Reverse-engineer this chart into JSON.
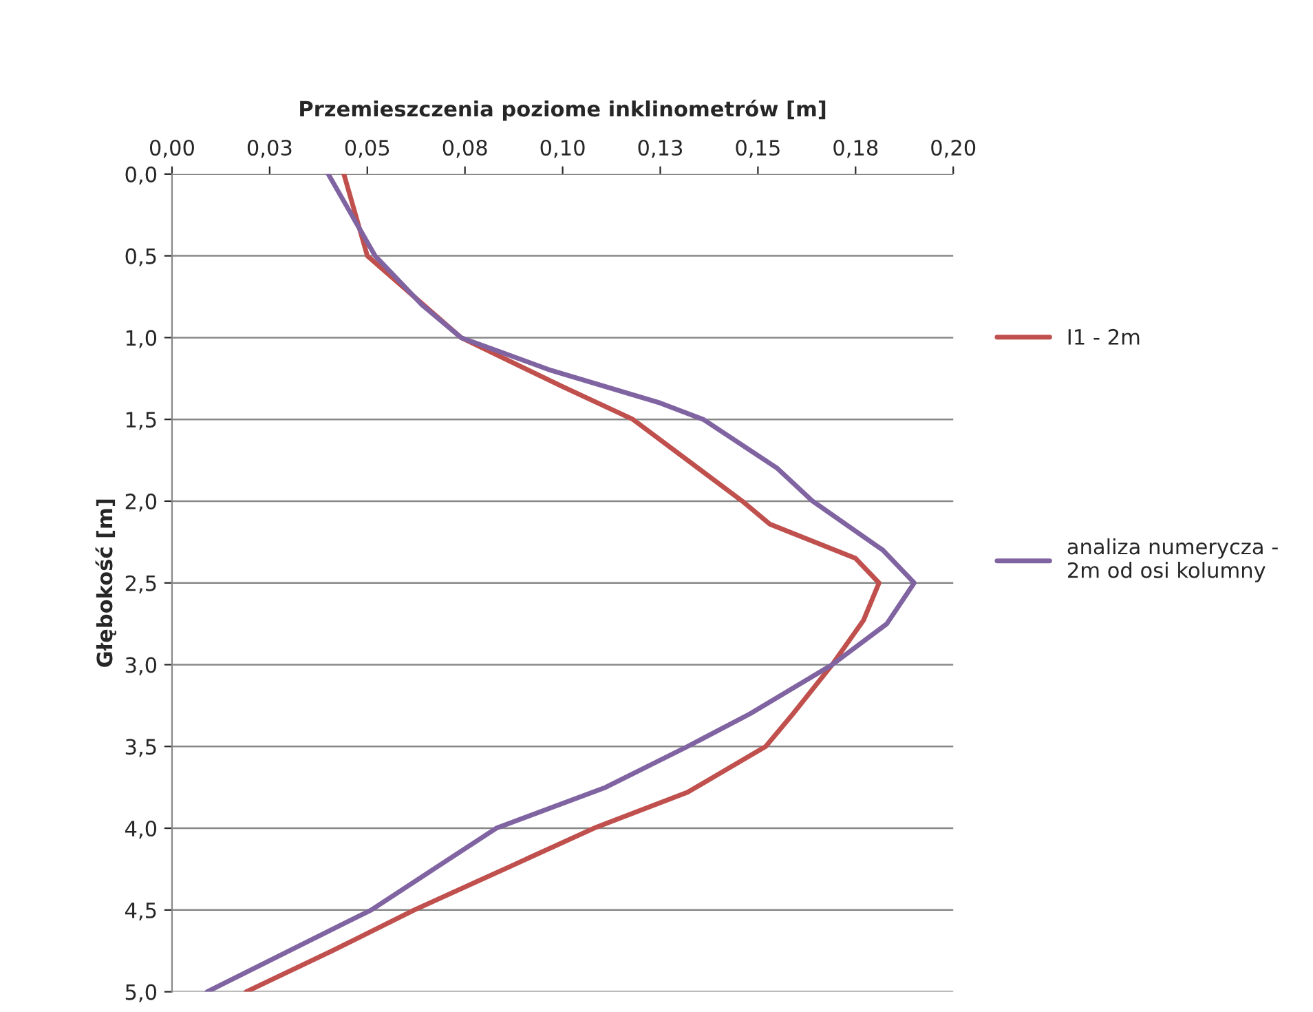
{
  "chart_data": {
    "type": "line",
    "xlabel": "Przemieszczenia poziome inklinometrów [m]",
    "ylabel": "Głębokość [m]",
    "xlim": [
      0,
      0.2
    ],
    "xticks": [
      {
        "value": 0,
        "label": "0,00"
      },
      {
        "value": 0.025,
        "label": "0,03"
      },
      {
        "value": 0.05,
        "label": "0,05"
      },
      {
        "value": 0.075,
        "label": "0,08"
      },
      {
        "value": 0.1,
        "label": "0,10"
      },
      {
        "value": 0.125,
        "label": "0,13"
      },
      {
        "value": 0.15,
        "label": "0,15"
      },
      {
        "value": 0.175,
        "label": "0,18"
      },
      {
        "value": 0.2,
        "label": "0,20"
      }
    ],
    "ylim": [
      5,
      0
    ],
    "yticks": [
      {
        "value": 0,
        "label": "0,0"
      },
      {
        "value": 0.5,
        "label": "0,5"
      },
      {
        "value": 1,
        "label": "1,0"
      },
      {
        "value": 1.5,
        "label": "1,5"
      },
      {
        "value": 2,
        "label": "2,0"
      },
      {
        "value": 2.5,
        "label": "2,5"
      },
      {
        "value": 3,
        "label": "3,0"
      },
      {
        "value": 3.5,
        "label": "3,5"
      },
      {
        "value": 4,
        "label": "4,0"
      },
      {
        "value": 4.5,
        "label": "4,5"
      },
      {
        "value": 5,
        "label": "5,0"
      }
    ],
    "grid": "y",
    "legend": "right",
    "marker": "none",
    "line_style": "solid",
    "series": [
      {
        "name": "I1 - 2m",
        "color": "#c0504d",
        "x": [
          0.044,
          0.05,
          0.074,
          0.1,
          0.118,
          0.146,
          0.153,
          0.175,
          0.181,
          0.177,
          0.169,
          0.159,
          0.152,
          0.132,
          0.108,
          0.086,
          0.062,
          0.041,
          0.019
        ],
        "values": [
          0,
          0.5,
          1.0,
          1.3,
          1.5,
          2.0,
          2.14,
          2.35,
          2.5,
          2.73,
          3.0,
          3.3,
          3.5,
          3.78,
          4.0,
          4.24,
          4.5,
          4.75,
          5.0
        ]
      },
      {
        "name": "analiza numerycza -\n2m od osi kolumny",
        "color": "#8064a2",
        "x": [
          0.04,
          0.052,
          0.064,
          0.074,
          0.097,
          0.125,
          0.136,
          0.155,
          0.164,
          0.182,
          0.19,
          0.183,
          0.169,
          0.148,
          0.132,
          0.111,
          0.083,
          0.067,
          0.051,
          0.03,
          0.009
        ],
        "values": [
          0,
          0.5,
          0.8,
          1.0,
          1.2,
          1.4,
          1.5,
          1.8,
          2.0,
          2.3,
          2.5,
          2.75,
          3.0,
          3.3,
          3.5,
          3.75,
          4.0,
          4.25,
          4.5,
          4.75,
          5.0
        ]
      }
    ]
  }
}
